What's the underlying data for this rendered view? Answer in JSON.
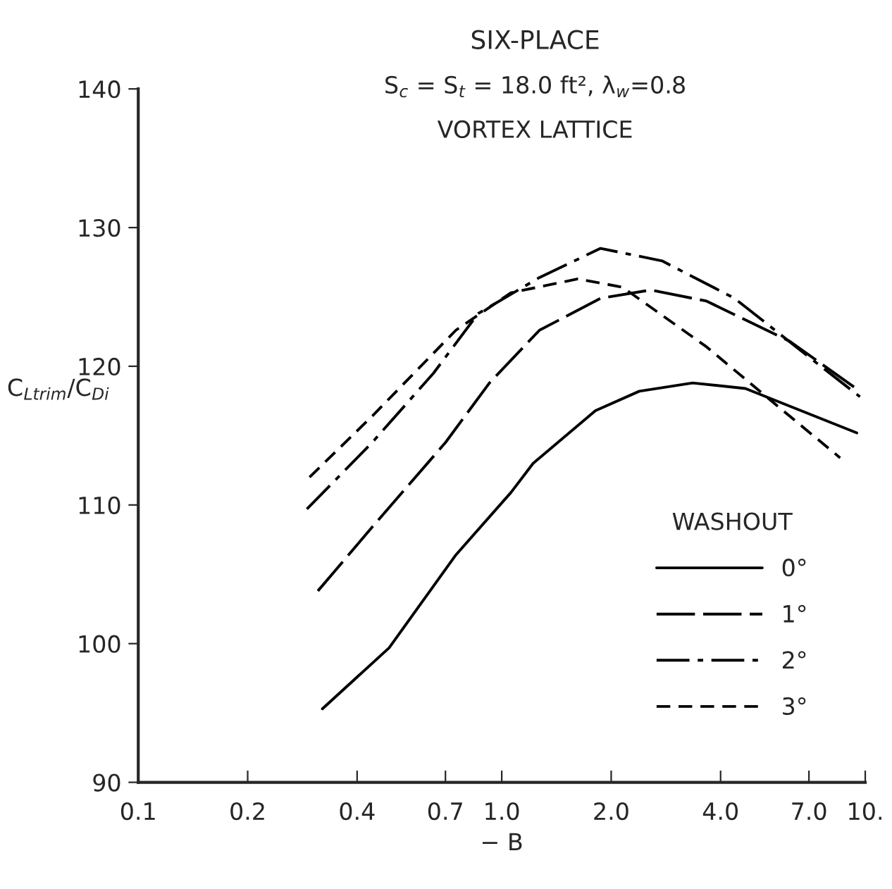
{
  "chart_data": {
    "type": "line",
    "title": "SIX-PLACE",
    "subtitle": "S$_{c}$ = S$_{t}$ = 18.0 ft², λ$_{w}$=0.8",
    "annotations": [
      "VORTEX LATTICE"
    ],
    "xlabel": "− B",
    "ylabel": "C$_{Ltrim}$/C$_{Di}$",
    "legend_title": "WASHOUT",
    "legend": "lower right",
    "log": "x",
    "xlim": [
      0.1,
      10
    ],
    "xticks": [
      0.1,
      0.2,
      0.4,
      {
        "value": 0.7,
        "label": "0.7"
      },
      {
        "value": 1,
        "label": "1.0"
      },
      {
        "value": 2,
        "label": "2.0"
      },
      {
        "value": 4,
        "label": "4.0"
      },
      {
        "value": 7,
        "label": "7.0"
      },
      {
        "value": 10,
        "label": "10."
      }
    ],
    "ylim": [
      90,
      140
    ],
    "yticks": [
      90,
      100,
      110,
      120,
      130,
      140
    ],
    "grid": false,
    "series": [
      {
        "name": "0°",
        "color": "#000000",
        "line_style": "solid",
        "x": [
          0.321,
          0.49,
          0.748,
          1.06,
          1.22,
          1.81,
          2.39,
          3.35,
          4.68,
          9.48
        ],
        "values": [
          95.3,
          99.7,
          106.4,
          110.9,
          113.0,
          116.8,
          118.2,
          118.8,
          118.4,
          115.2
        ]
      },
      {
        "name": "1°",
        "color": "#000000",
        "line_style": "longdash",
        "x": [
          0.312,
          0.44,
          0.7,
          0.925,
          1.27,
          1.87,
          2.57,
          3.66,
          6.2,
          9.67
        ],
        "values": [
          103.8,
          108.4,
          114.5,
          118.8,
          122.6,
          124.9,
          125.5,
          124.7,
          121.8,
          118.2
        ]
      },
      {
        "name": "2°",
        "color": "#000000",
        "line_style": "dashdot",
        "x": [
          0.291,
          0.44,
          0.649,
          0.861,
          1.27,
          1.87,
          2.76,
          4.37,
          6.67,
          9.67
        ],
        "values": [
          109.7,
          114.5,
          119.5,
          123.8,
          126.4,
          128.5,
          127.6,
          124.9,
          121.1,
          117.8
        ]
      },
      {
        "name": "3°",
        "color": "#000000",
        "line_style": "dashed",
        "x": [
          0.296,
          0.44,
          0.748,
          1.06,
          1.62,
          2.15,
          3.66,
          6.2,
          8.53
        ],
        "values": [
          112.0,
          116.4,
          122.6,
          125.3,
          126.3,
          125.7,
          121.4,
          116.4,
          113.4
        ]
      }
    ]
  }
}
